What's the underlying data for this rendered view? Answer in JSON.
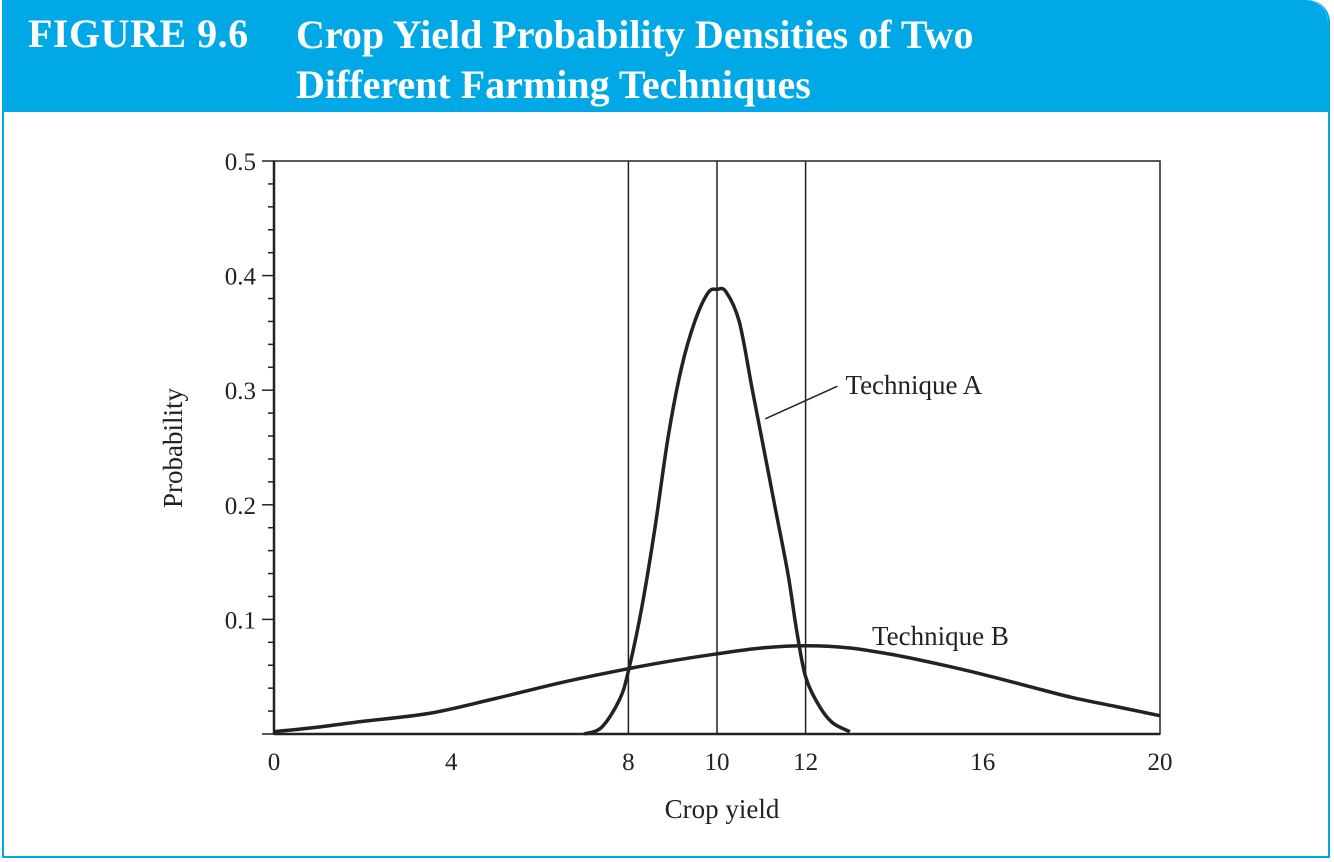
{
  "figure": {
    "number": "FIGURE 9.6",
    "title_line1": "Crop Yield Probability Densities of Two",
    "title_line2": "Different Farming Techniques",
    "header_color": "#00a9e6"
  },
  "chart_data": {
    "type": "line",
    "title": "Crop Yield Probability Densities of Two Different Farming Techniques",
    "xlabel": "Crop yield",
    "ylabel": "Probability",
    "xlim": [
      0,
      20
    ],
    "ylim": [
      0,
      0.5
    ],
    "x_ticks": [
      0,
      4,
      8,
      10,
      12,
      16,
      20
    ],
    "x_tick_labels": [
      "0",
      "4",
      "8",
      "10",
      "12",
      "16",
      "20"
    ],
    "y_ticks": [
      0.1,
      0.2,
      0.3,
      0.4,
      0.5
    ],
    "y_tick_labels": [
      "0.1",
      "0.2",
      "0.3",
      "0.4",
      "0.5"
    ],
    "reference_lines_x": [
      8,
      10,
      12
    ],
    "grid": false,
    "series": [
      {
        "name": "Technique A",
        "color": "#222222",
        "points": [
          [
            7.0,
            0.0
          ],
          [
            7.4,
            0.006
          ],
          [
            7.8,
            0.03
          ],
          [
            8.0,
            0.055
          ],
          [
            8.3,
            0.11
          ],
          [
            8.6,
            0.18
          ],
          [
            8.9,
            0.26
          ],
          [
            9.2,
            0.32
          ],
          [
            9.5,
            0.36
          ],
          [
            9.8,
            0.385
          ],
          [
            10.0,
            0.388
          ],
          [
            10.2,
            0.386
          ],
          [
            10.5,
            0.36
          ],
          [
            10.8,
            0.3
          ],
          [
            11.0,
            0.26
          ],
          [
            11.3,
            0.2
          ],
          [
            11.6,
            0.14
          ],
          [
            11.8,
            0.09
          ],
          [
            12.0,
            0.05
          ],
          [
            12.3,
            0.025
          ],
          [
            12.6,
            0.01
          ],
          [
            13.0,
            0.002
          ]
        ]
      },
      {
        "name": "Technique B",
        "color": "#222222",
        "points": [
          [
            0.0,
            0.002
          ],
          [
            1.0,
            0.006
          ],
          [
            2.0,
            0.011
          ],
          [
            3.5,
            0.018
          ],
          [
            5.0,
            0.031
          ],
          [
            6.5,
            0.045
          ],
          [
            8.0,
            0.057
          ],
          [
            9.0,
            0.064
          ],
          [
            10.0,
            0.07
          ],
          [
            11.0,
            0.075
          ],
          [
            12.0,
            0.077
          ],
          [
            13.0,
            0.075
          ],
          [
            14.0,
            0.069
          ],
          [
            15.0,
            0.061
          ],
          [
            16.0,
            0.052
          ],
          [
            17.0,
            0.042
          ],
          [
            18.0,
            0.032
          ],
          [
            19.0,
            0.024
          ],
          [
            20.0,
            0.016
          ]
        ]
      }
    ],
    "annotations": [
      {
        "text": "Technique A",
        "series": "Technique A",
        "anchor_x": 11.0,
        "anchor_y": 0.275,
        "label_x": 12.9,
        "label_y": 0.3
      },
      {
        "text": "Technique B",
        "series": "Technique B",
        "anchor_x": null,
        "anchor_y": null,
        "label_x": 13.5,
        "label_y": 0.081
      }
    ]
  }
}
